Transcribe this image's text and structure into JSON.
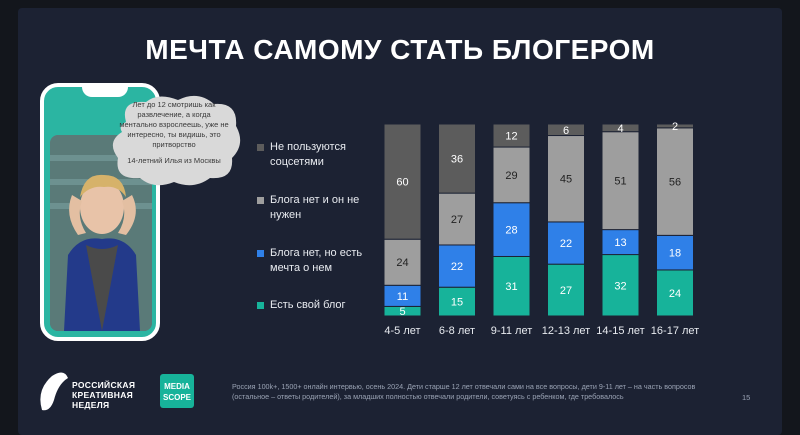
{
  "slide": {
    "title": "МЕЧТА САМОМУ СТАТЬ БЛОГЕРОМ",
    "page_number": "15"
  },
  "quote": {
    "text": "Лет до 12 смотришь как развлечение, а когда ментально взрослеешь, уже не интересно, ты видишь, это притворство",
    "author": "14-летний Илья из Москвы"
  },
  "footer": {
    "logo_line1": "РОССИЙСКАЯ",
    "logo_line2": "КРЕАТИВНАЯ",
    "logo_line3": "НЕДЕЛЯ",
    "mediascope_line1": "MEDIA",
    "mediascope_line2": "SCOPE",
    "footnote": "Россия 100k+, 1500+ онлайн интервью, осень 2024. Дети старше 12 лет отвечали сами на все вопросы, дети 9-11 лет – на часть вопросов (остальное – ответы родителей), за младших полностью отвечали родители, советуясь с ребенком, где требовалось"
  },
  "colors": {
    "background": "#1c2233",
    "teal": "#17b39a",
    "blue": "#2f80e8",
    "light_gray": "#9e9e9e",
    "dark_gray": "#5c5c5c"
  },
  "chart_data": {
    "type": "bar",
    "stacked": true,
    "title": "МЕЧТА САМОМУ СТАТЬ БЛОГЕРОМ",
    "categories": [
      "4-5 лет",
      "6-8 лет",
      "9-11 лет",
      "12-13 лет",
      "14-15 лет",
      "16-17 лет"
    ],
    "series": [
      {
        "name": "Есть свой блог",
        "color": "#17b39a",
        "values": [
          5,
          15,
          31,
          27,
          32,
          24
        ]
      },
      {
        "name": "Блога нет, но есть мечта о нем",
        "color": "#2f80e8",
        "values": [
          11,
          22,
          28,
          22,
          13,
          18
        ]
      },
      {
        "name": "Блога нет и он не нужен",
        "color": "#9e9e9e",
        "values": [
          24,
          27,
          29,
          45,
          51,
          56
        ]
      },
      {
        "name": "Не пользуются соцсетями",
        "color": "#5c5c5c",
        "values": [
          60,
          36,
          12,
          6,
          4,
          2
        ]
      }
    ],
    "legend_order": [
      {
        "label": "Не пользуются соцсетями",
        "color": "#5c5c5c"
      },
      {
        "label": "Блога нет и он не нужен",
        "color": "#9e9e9e"
      },
      {
        "label": "Блога нет, но есть мечта о нем",
        "color": "#2f80e8"
      },
      {
        "label": "Есть свой блог",
        "color": "#17b39a"
      }
    ],
    "ylim": [
      0,
      100
    ],
    "xlabel": "",
    "ylabel": ""
  }
}
